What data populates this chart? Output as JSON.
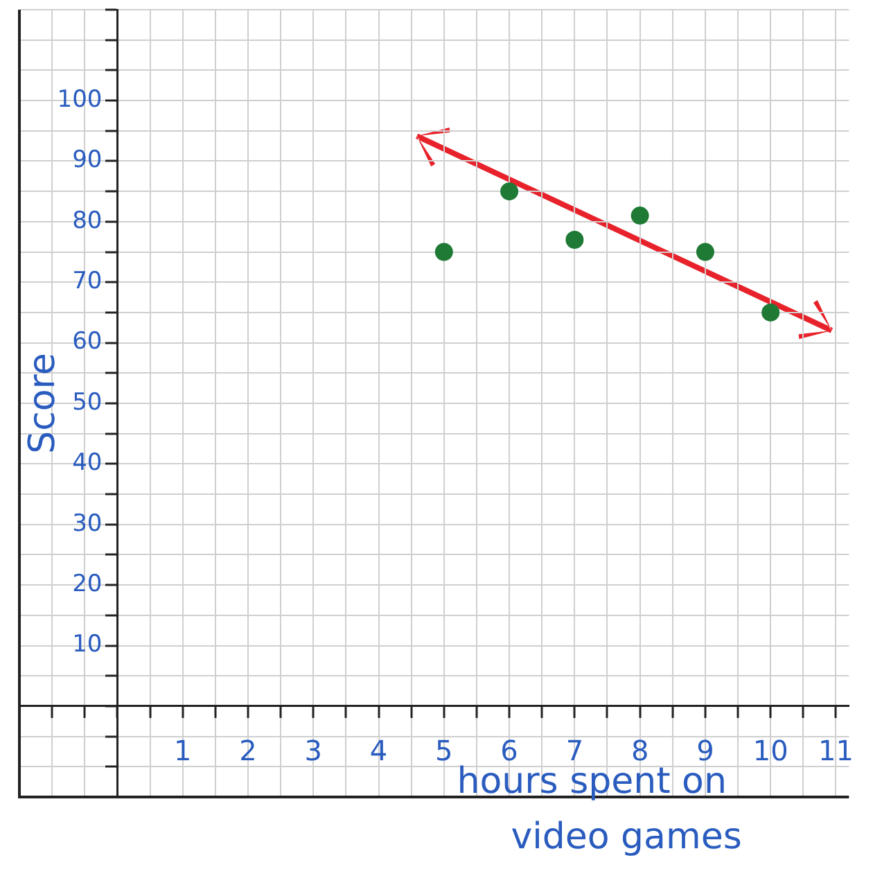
{
  "chart_data": {
    "type": "scatter",
    "xlabel": "hours spent on\nvideo games",
    "ylabel": "Score",
    "xlim": [
      -1.5,
      11.2
    ],
    "ylim": [
      -15,
      115
    ],
    "xticks": [
      {
        "value": -1.5,
        "label": null
      },
      {
        "value": -1,
        "label": null
      },
      {
        "value": -0.5,
        "label": null
      },
      {
        "value": 0,
        "label": null
      },
      {
        "value": 0.5,
        "label": null
      },
      1,
      {
        "value": 1.5,
        "label": null
      },
      2,
      {
        "value": 2.5,
        "label": null
      },
      3,
      {
        "value": 3.5,
        "label": null
      },
      4,
      {
        "value": 4.5,
        "label": null
      },
      5,
      {
        "value": 5.5,
        "label": null
      },
      6,
      {
        "value": 6.5,
        "label": null
      },
      7,
      {
        "value": 7.5,
        "label": null
      },
      8,
      {
        "value": 8.5,
        "label": null
      },
      9,
      {
        "value": 9.5,
        "label": null
      },
      10,
      {
        "value": 10.5,
        "label": null
      },
      11
    ],
    "yticks": [
      {
        "value": -15,
        "label": null
      },
      {
        "value": -10,
        "label": null
      },
      {
        "value": -5,
        "label": null
      },
      {
        "value": 0,
        "label": null
      },
      {
        "value": 5,
        "label": null
      },
      10,
      {
        "value": 15,
        "label": null
      },
      20,
      {
        "value": 25,
        "label": null
      },
      30,
      {
        "value": 35,
        "label": null
      },
      40,
      {
        "value": 45,
        "label": null
      },
      50,
      {
        "value": 55,
        "label": null
      },
      60,
      {
        "value": 65,
        "label": null
      },
      70,
      {
        "value": 75,
        "label": null
      },
      80,
      {
        "value": 85,
        "label": null
      },
      90,
      {
        "value": 95,
        "label": null
      },
      100,
      {
        "value": 105,
        "label": null
      },
      {
        "value": 110,
        "label": null
      },
      {
        "value": 115,
        "label": null
      }
    ],
    "grid": true,
    "legend": false,
    "marker": "circle",
    "series": [
      {
        "type": "scatter",
        "color": "#1f7a35",
        "x": [
          5,
          6,
          7,
          8,
          9,
          10
        ],
        "values": [
          75,
          85,
          77,
          81,
          75,
          65
        ]
      }
    ]
  }
}
